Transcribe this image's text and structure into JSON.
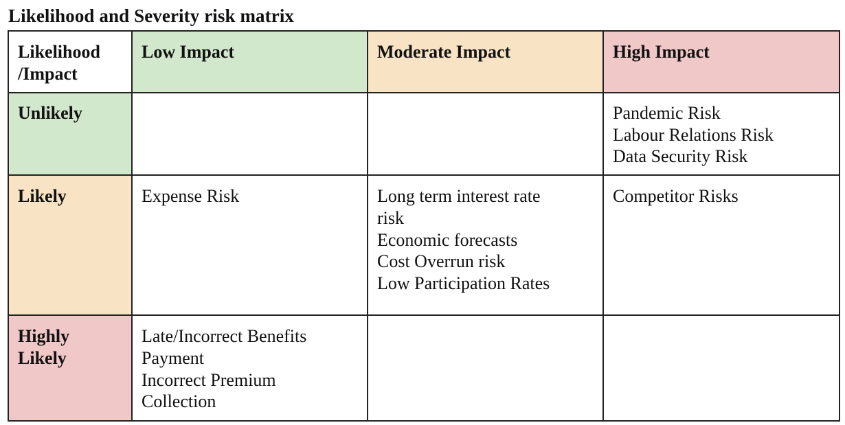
{
  "title": "Likelihood and Severity risk matrix",
  "colors": {
    "low": "#d2e8cc",
    "moderate": "#f8e4c4",
    "high": "#f0c8c7",
    "white": "#ffffff",
    "border": "#222222"
  },
  "matrix": {
    "corner_label_lines": [
      "Likelihood",
      "/Impact"
    ],
    "columns": [
      {
        "label": "Low Impact",
        "color": "#d2e8cc"
      },
      {
        "label": "Moderate Impact",
        "color": "#f8e4c4"
      },
      {
        "label": "High Impact",
        "color": "#f0c8c7"
      }
    ],
    "rows": [
      {
        "label_lines": [
          "Unlikely"
        ],
        "color": "#d2e8cc",
        "cells": [
          [],
          [],
          [
            "Pandemic Risk",
            "Labour Relations Risk",
            "Data Security Risk"
          ]
        ]
      },
      {
        "label_lines": [
          "Likely"
        ],
        "color": "#f8e4c4",
        "cells": [
          [
            "Expense Risk"
          ],
          [
            "Long term interest rate",
            "risk",
            "Economic forecasts",
            "Cost Overrun risk",
            "Low Participation Rates"
          ],
          [
            "Competitor Risks"
          ]
        ]
      },
      {
        "label_lines": [
          "Highly",
          "Likely"
        ],
        "color": "#f0c8c7",
        "cells": [
          [
            "Late/Incorrect Benefits",
            "Payment",
            "Incorrect Premium",
            "Collection"
          ],
          [],
          []
        ]
      }
    ]
  }
}
